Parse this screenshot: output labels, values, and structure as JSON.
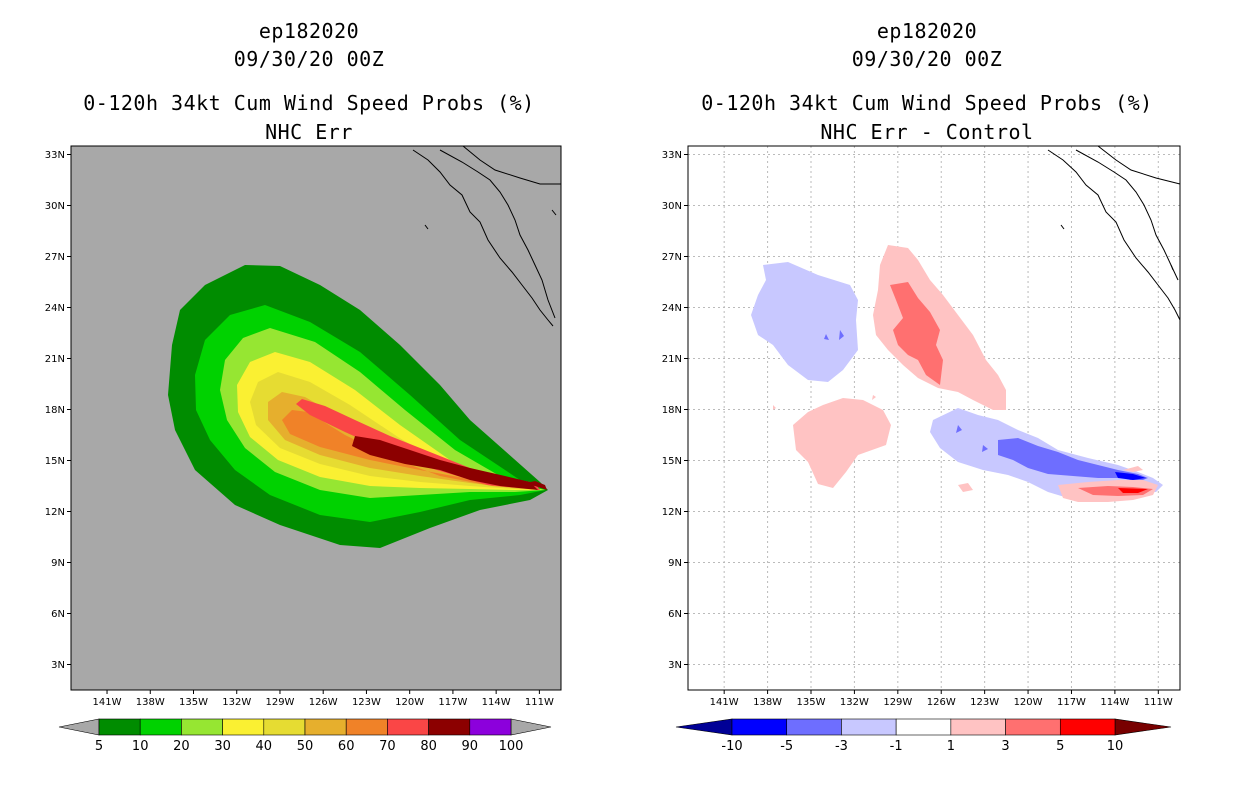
{
  "panels": [
    {
      "storm_id": "ep182020",
      "datetime": "09/30/20 00Z",
      "product": "0-120h 34kt Cum Wind Speed Probs (%)",
      "subtitle": "NHC Err",
      "background_color": "#a8a8a8",
      "colorbar": {
        "labels": [
          "5",
          "10",
          "20",
          "30",
          "40",
          "50",
          "60",
          "70",
          "80",
          "90",
          "100"
        ],
        "colors": [
          "#008c00",
          "#00d200",
          "#96e632",
          "#faf032",
          "#e6dc32",
          "#e6af2d",
          "#f08228",
          "#fa4646",
          "#8c0000",
          "#8c00dc"
        ],
        "end_arrow_color": "#a8a8a8"
      }
    },
    {
      "storm_id": "ep182020",
      "datetime": "09/30/20 00Z",
      "product": "0-120h 34kt Cum Wind Speed Probs (%)",
      "subtitle": "NHC Err - Control",
      "background_color": "#ffffff",
      "colorbar": {
        "labels": [
          "-10",
          "-5",
          "-3",
          "-1",
          "1",
          "3",
          "5",
          "10"
        ],
        "colors": [
          "#0000ff",
          "#6e6eff",
          "#c8c8ff",
          "#ffffff",
          "#ffc3c3",
          "#ff7070",
          "#ff0000"
        ],
        "low_arrow_color": "#000096",
        "high_arrow_color": "#780000"
      }
    }
  ],
  "axes": {
    "lat_ticks": [
      "33N",
      "30N",
      "27N",
      "24N",
      "21N",
      "18N",
      "15N",
      "12N",
      "9N",
      "6N",
      "3N"
    ],
    "lon_ticks": [
      "141W",
      "138W",
      "135W",
      "132W",
      "129W",
      "126W",
      "123W",
      "120W",
      "117W",
      "114W",
      "111W"
    ],
    "lat_values": [
      33,
      30,
      27,
      24,
      21,
      18,
      15,
      12,
      9,
      6,
      3
    ],
    "lon_values": [
      -141,
      -138,
      -135,
      -132,
      -129,
      -126,
      -123,
      -120,
      -117,
      -114,
      -111
    ],
    "lon_range": [
      -143.5,
      -109.5
    ],
    "lat_range": [
      1.5,
      33.5
    ]
  }
}
